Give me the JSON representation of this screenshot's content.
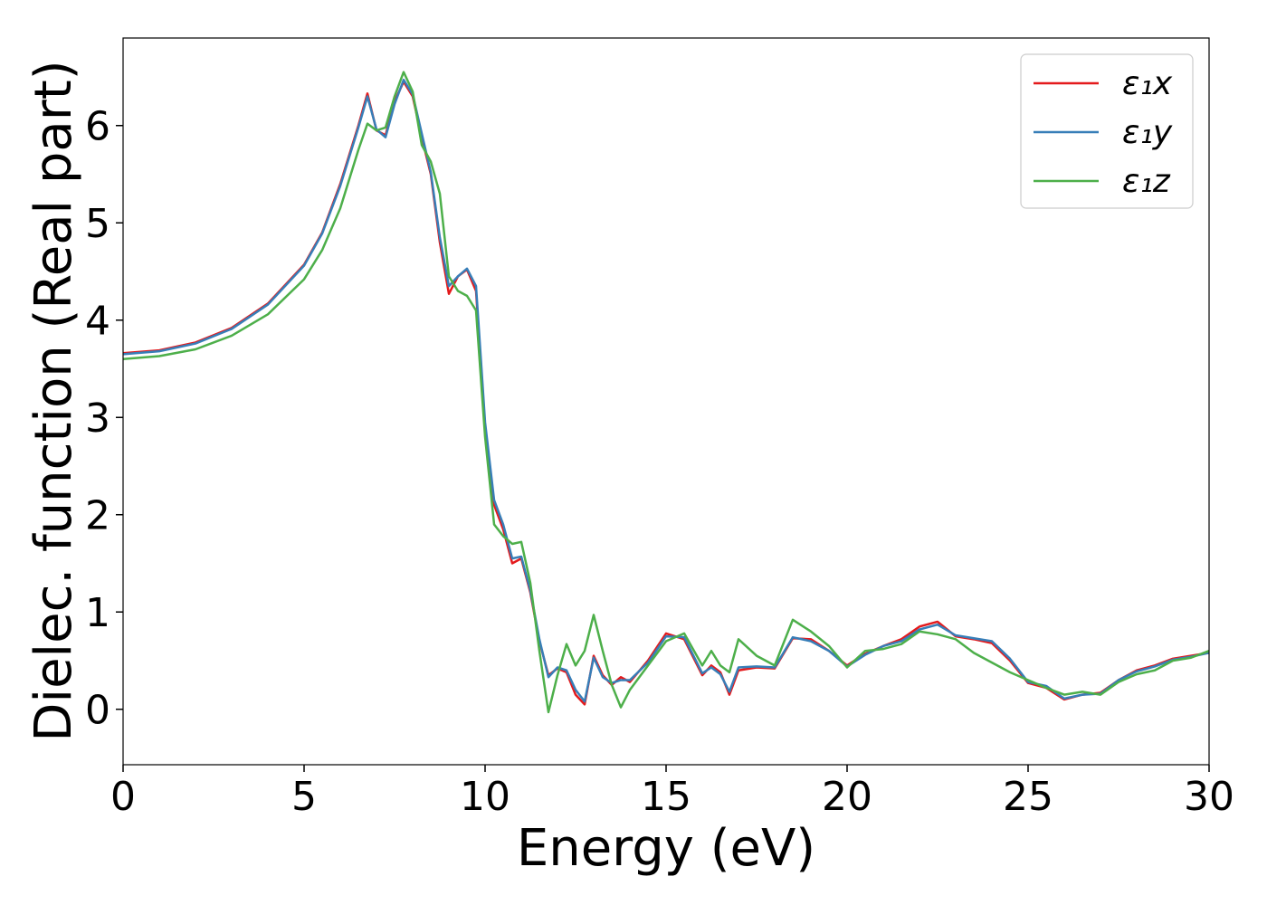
{
  "chart_data": {
    "type": "line",
    "xlabel": "Energy (eV)",
    "ylabel": "Dielec. function (Real part)",
    "x": [
      0,
      1,
      2,
      3,
      4,
      5,
      5.5,
      6,
      6.5,
      6.75,
      7,
      7.25,
      7.5,
      7.75,
      8,
      8.25,
      8.5,
      8.75,
      9,
      9.25,
      9.5,
      9.75,
      10,
      10.25,
      10.5,
      10.75,
      11,
      11.25,
      11.5,
      11.75,
      12,
      12.25,
      12.5,
      12.75,
      13,
      13.25,
      13.5,
      13.75,
      14,
      14.5,
      15,
      15.5,
      16,
      16.25,
      16.5,
      16.75,
      17,
      17.5,
      18,
      18.5,
      19,
      19.5,
      20,
      20.5,
      21,
      21.5,
      22,
      22.5,
      23,
      23.5,
      24,
      24.5,
      25,
      25.5,
      26,
      26.5,
      27,
      27.5,
      28,
      28.5,
      29,
      29.5,
      30
    ],
    "series": [
      {
        "name": "ε₁x",
        "color": "#e41a1c",
        "values": [
          3.66,
          3.69,
          3.77,
          3.92,
          4.17,
          4.57,
          4.9,
          5.4,
          6.0,
          6.33,
          5.95,
          5.9,
          6.25,
          6.45,
          6.3,
          5.88,
          5.5,
          4.8,
          4.27,
          4.45,
          4.52,
          4.3,
          2.9,
          2.1,
          1.85,
          1.5,
          1.55,
          1.2,
          0.7,
          0.35,
          0.42,
          0.38,
          0.15,
          0.05,
          0.55,
          0.35,
          0.25,
          0.33,
          0.28,
          0.5,
          0.78,
          0.72,
          0.35,
          0.45,
          0.38,
          0.15,
          0.4,
          0.43,
          0.42,
          0.73,
          0.72,
          0.6,
          0.45,
          0.57,
          0.65,
          0.72,
          0.85,
          0.9,
          0.75,
          0.72,
          0.68,
          0.5,
          0.27,
          0.22,
          0.1,
          0.15,
          0.17,
          0.3,
          0.4,
          0.45,
          0.52,
          0.55,
          0.58
        ]
      },
      {
        "name": "ε₁y",
        "color": "#377eb8",
        "values": [
          3.65,
          3.68,
          3.76,
          3.91,
          4.16,
          4.56,
          4.89,
          5.38,
          5.98,
          6.3,
          5.96,
          5.88,
          6.22,
          6.47,
          6.32,
          5.92,
          5.52,
          4.85,
          4.35,
          4.45,
          4.53,
          4.35,
          2.95,
          2.15,
          1.9,
          1.55,
          1.57,
          1.22,
          0.72,
          0.33,
          0.43,
          0.4,
          0.2,
          0.08,
          0.53,
          0.33,
          0.27,
          0.3,
          0.3,
          0.48,
          0.75,
          0.74,
          0.37,
          0.43,
          0.36,
          0.18,
          0.43,
          0.44,
          0.43,
          0.74,
          0.7,
          0.6,
          0.44,
          0.56,
          0.65,
          0.7,
          0.82,
          0.87,
          0.76,
          0.73,
          0.7,
          0.52,
          0.28,
          0.24,
          0.11,
          0.15,
          0.16,
          0.3,
          0.39,
          0.44,
          0.51,
          0.54,
          0.58
        ]
      },
      {
        "name": "ε₁z",
        "color": "#4daf4a",
        "values": [
          3.6,
          3.63,
          3.7,
          3.84,
          4.06,
          4.42,
          4.72,
          5.15,
          5.75,
          6.02,
          5.95,
          5.98,
          6.3,
          6.55,
          6.35,
          5.8,
          5.63,
          5.3,
          4.45,
          4.3,
          4.25,
          4.1,
          2.8,
          1.9,
          1.78,
          1.7,
          1.72,
          1.3,
          0.6,
          -0.03,
          0.35,
          0.67,
          0.45,
          0.6,
          0.97,
          0.6,
          0.25,
          0.02,
          0.2,
          0.45,
          0.7,
          0.78,
          0.45,
          0.6,
          0.45,
          0.38,
          0.72,
          0.55,
          0.45,
          0.92,
          0.8,
          0.65,
          0.43,
          0.6,
          0.62,
          0.67,
          0.8,
          0.77,
          0.72,
          0.58,
          0.48,
          0.38,
          0.3,
          0.22,
          0.15,
          0.18,
          0.15,
          0.28,
          0.36,
          0.4,
          0.5,
          0.53,
          0.6
        ]
      }
    ],
    "xlim": [
      0,
      30
    ],
    "ylim": [
      -0.57,
      6.9
    ],
    "xticks": [
      0,
      5,
      10,
      15,
      20,
      25,
      30
    ],
    "yticks": [
      0,
      1,
      2,
      3,
      4,
      5,
      6
    ],
    "legend": "upper right"
  }
}
